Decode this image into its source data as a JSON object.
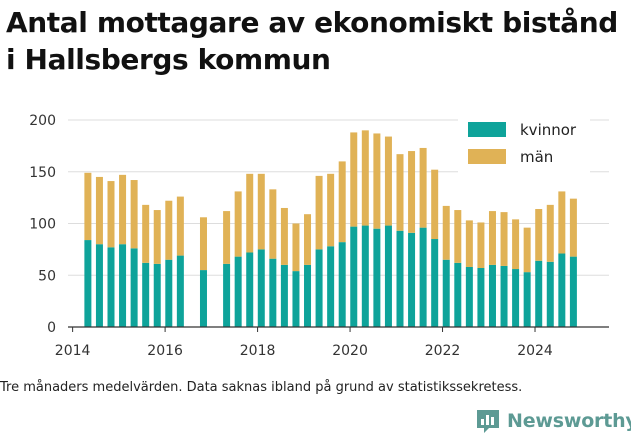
{
  "title_lines": [
    "Antal mottagare av ekonomiskt bistånd",
    "i Hallsbergs kommun"
  ],
  "caption": "Tre månaders medelvärden. Data saknas ibland på grund av statistikssekretess.",
  "brand": {
    "name": "Newsworthy",
    "logo_icon": "bar-chart-icon"
  },
  "colors": {
    "kvinnor": "#0ea39a",
    "man": "#e0b256",
    "grid": "#dddddd",
    "axis": "#333333",
    "brand": "#5d9a94"
  },
  "chart_data": {
    "type": "bar",
    "stacked": true,
    "title": "Antal mottagare av ekonomiskt bistånd i Hallsbergs kommun",
    "xlabel": "",
    "ylabel": "",
    "ylim": [
      0,
      200
    ],
    "yticks": [
      0,
      50,
      100,
      150,
      200
    ],
    "xlim": [
      2013.9,
      2025.6
    ],
    "xticks": [
      2014,
      2016,
      2018,
      2020,
      2022,
      2024
    ],
    "grid": "horizontal",
    "legend": "top-right",
    "x": [
      2014.33,
      2014.58,
      2014.83,
      2015.08,
      2015.33,
      2015.58,
      2015.83,
      2016.08,
      2016.33,
      2016.83,
      2017.33,
      2017.58,
      2017.83,
      2018.08,
      2018.33,
      2018.58,
      2018.83,
      2019.08,
      2019.33,
      2019.58,
      2019.83,
      2020.08,
      2020.33,
      2020.58,
      2020.83,
      2021.08,
      2021.33,
      2021.58,
      2021.83,
      2022.08,
      2022.33,
      2022.58,
      2022.83,
      2023.08,
      2023.33,
      2023.58,
      2023.83,
      2024.08,
      2024.33,
      2024.58,
      2024.83
    ],
    "series": [
      {
        "name": "kvinnor",
        "values": [
          84,
          80,
          77,
          80,
          76,
          62,
          61,
          65,
          69,
          55,
          61,
          68,
          72,
          75,
          66,
          60,
          54,
          60,
          75,
          78,
          82,
          97,
          98,
          95,
          98,
          93,
          91,
          96,
          85,
          65,
          62,
          58,
          57,
          60,
          59,
          56,
          53,
          64,
          63,
          71,
          68
        ]
      },
      {
        "name": "män",
        "values": [
          65,
          65,
          64,
          67,
          66,
          56,
          52,
          57,
          57,
          51,
          51,
          63,
          76,
          73,
          67,
          55,
          46,
          49,
          71,
          70,
          78,
          91,
          92,
          92,
          86,
          74,
          79,
          77,
          67,
          52,
          51,
          45,
          44,
          52,
          52,
          48,
          43,
          50,
          55,
          60,
          56
        ]
      }
    ]
  }
}
